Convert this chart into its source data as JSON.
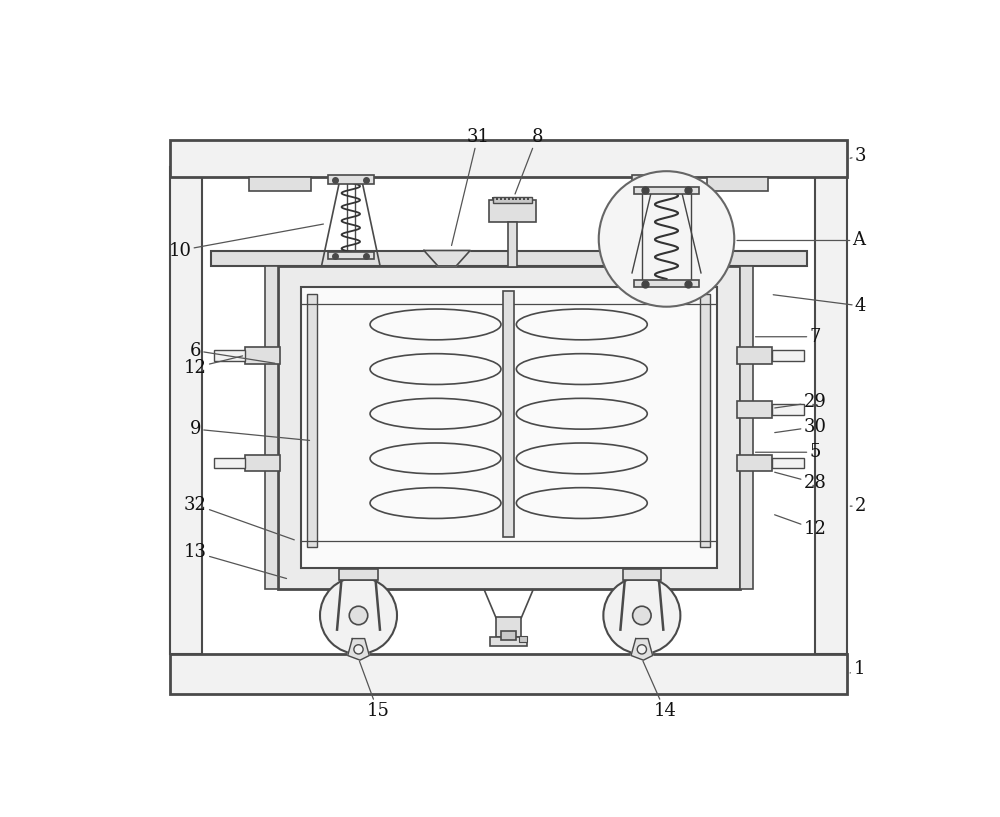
{
  "bg_color": "#ffffff",
  "lc": "#4a4a4a",
  "lc2": "#333333",
  "fill_light": "#f2f2f2",
  "fill_mid": "#e0e0e0",
  "fill_dark": "#c8c8c8",
  "fill_white": "#fafafa",
  "speckle": "#aaaaaa"
}
